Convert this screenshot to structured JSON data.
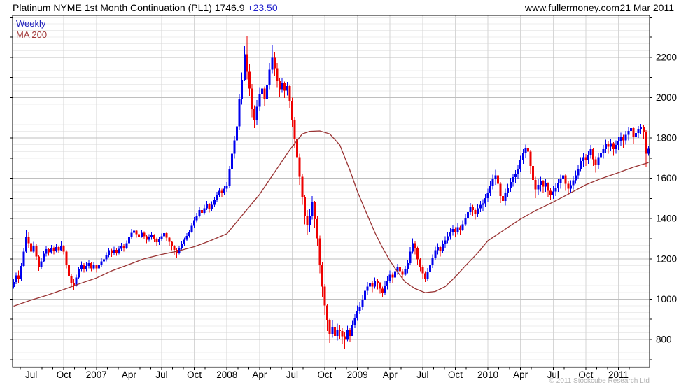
{
  "header": {
    "title": "Platinum NYME 1st Month Continuation (PL1)",
    "price": "1746.9",
    "change": "+23.50",
    "site": "www.fullermoney.com",
    "date": "21 Mar 2011"
  },
  "legend": {
    "timeframe": "Weekly",
    "ma": "MA 200"
  },
  "footer": {
    "copyright": "© 2011 Stockcube Research Ltd"
  },
  "colors": {
    "up": "#0000ee",
    "down": "#ee0000",
    "ma": "#993333",
    "change_text": "#2020cc",
    "legend_weekly": "#2020bb",
    "legend_ma": "#a03535",
    "grid_major": "#bfbfbf",
    "grid_minor": "#ececec",
    "grid_vertical": "#d6d6d6",
    "axis": "#000000",
    "copyright": "#b2b2b2"
  },
  "chart_data": {
    "type": "candlestick",
    "title": "Platinum NYME 1st Month Continuation (PL1)",
    "timeframe": "weekly",
    "period_start": "May 2006",
    "period_end": "21 Mar 2011",
    "last_price": 1746.9,
    "last_change": 23.5,
    "ylim": [
      661,
      2408
    ],
    "y_labels": [
      800,
      1000,
      1200,
      1400,
      1600,
      1800,
      2000,
      2200
    ],
    "y_minor_step": 33.333,
    "y_tick_step": 100,
    "x_ticks": [
      [
        7,
        "Jul"
      ],
      [
        20,
        "Oct"
      ],
      [
        33,
        "2007"
      ],
      [
        46,
        "Apr"
      ],
      [
        59,
        "Jul"
      ],
      [
        72,
        "Oct"
      ],
      [
        85,
        "2008"
      ],
      [
        98,
        "Apr"
      ],
      [
        111,
        "Jul"
      ],
      [
        124,
        "Oct"
      ],
      [
        137,
        "2009"
      ],
      [
        150,
        "Apr"
      ],
      [
        163,
        "Jul"
      ],
      [
        176,
        "Oct"
      ],
      [
        189,
        "2010"
      ],
      [
        202,
        "Apr"
      ],
      [
        215,
        "Jul"
      ],
      [
        228,
        "Oct"
      ],
      [
        241,
        "2011"
      ]
    ],
    "first_open": 1060,
    "candles": [
      [
        1085,
        1098,
        1052
      ],
      [
        1118,
        1132,
        1075
      ],
      [
        1098,
        1142,
        1080
      ],
      [
        1165,
        1178,
        1092
      ],
      [
        1235,
        1252,
        1158
      ],
      [
        1310,
        1345,
        1228
      ],
      [
        1278,
        1332,
        1252
      ],
      [
        1235,
        1292,
        1215
      ],
      [
        1265,
        1285,
        1228
      ],
      [
        1212,
        1272,
        1195
      ],
      [
        1158,
        1218,
        1140
      ],
      [
        1188,
        1205,
        1148
      ],
      [
        1225,
        1240,
        1182
      ],
      [
        1248,
        1265,
        1212
      ],
      [
        1232,
        1255,
        1215
      ],
      [
        1252,
        1268,
        1225
      ],
      [
        1238,
        1260,
        1222
      ],
      [
        1258,
        1275,
        1232
      ],
      [
        1242,
        1265,
        1228
      ],
      [
        1262,
        1288,
        1238
      ],
      [
        1235,
        1268,
        1222
      ],
      [
        1168,
        1242,
        1152
      ],
      [
        1115,
        1172,
        1092
      ],
      [
        1082,
        1125,
        1058
      ],
      [
        1068,
        1098,
        1045
      ],
      [
        1108,
        1122,
        1062
      ],
      [
        1148,
        1162,
        1102
      ],
      [
        1172,
        1188,
        1138
      ],
      [
        1148,
        1178,
        1132
      ],
      [
        1165,
        1182,
        1138
      ],
      [
        1178,
        1195,
        1152
      ],
      [
        1152,
        1182,
        1138
      ],
      [
        1168,
        1185,
        1145
      ],
      [
        1152,
        1172,
        1132
      ],
      [
        1172,
        1188,
        1142
      ],
      [
        1188,
        1202,
        1158
      ],
      [
        1198,
        1212,
        1172
      ],
      [
        1218,
        1232,
        1188
      ],
      [
        1242,
        1255,
        1208
      ],
      [
        1228,
        1250,
        1210
      ],
      [
        1245,
        1260,
        1220
      ],
      [
        1230,
        1252,
        1215
      ],
      [
        1250,
        1265,
        1222
      ],
      [
        1265,
        1280,
        1238
      ],
      [
        1252,
        1272,
        1236
      ],
      [
        1278,
        1292,
        1248
      ],
      [
        1308,
        1322,
        1270
      ],
      [
        1330,
        1348,
        1298
      ],
      [
        1340,
        1356,
        1316
      ],
      [
        1322,
        1346,
        1305
      ],
      [
        1310,
        1335,
        1294
      ],
      [
        1330,
        1345,
        1305
      ],
      [
        1312,
        1336,
        1296
      ],
      [
        1294,
        1320,
        1278
      ],
      [
        1308,
        1322,
        1284
      ],
      [
        1318,
        1332,
        1294
      ],
      [
        1298,
        1322,
        1282
      ],
      [
        1282,
        1305,
        1264
      ],
      [
        1296,
        1310,
        1268
      ],
      [
        1312,
        1326,
        1288
      ],
      [
        1328,
        1342,
        1302
      ],
      [
        1306,
        1332,
        1290
      ],
      [
        1284,
        1310,
        1262
      ],
      [
        1262,
        1290,
        1242
      ],
      [
        1244,
        1268,
        1220
      ],
      [
        1230,
        1252,
        1205
      ],
      [
        1254,
        1266,
        1222
      ],
      [
        1274,
        1288,
        1246
      ],
      [
        1294,
        1306,
        1262
      ],
      [
        1314,
        1328,
        1286
      ],
      [
        1334,
        1346,
        1306
      ],
      [
        1364,
        1378,
        1330
      ],
      [
        1392,
        1408,
        1356
      ],
      [
        1412,
        1428,
        1382
      ],
      [
        1442,
        1458,
        1406
      ],
      [
        1428,
        1452,
        1408
      ],
      [
        1452,
        1468,
        1420
      ],
      [
        1472,
        1488,
        1442
      ],
      [
        1448,
        1478,
        1430
      ],
      [
        1468,
        1486,
        1438
      ],
      [
        1492,
        1508,
        1458
      ],
      [
        1518,
        1532,
        1485
      ],
      [
        1538,
        1552,
        1508
      ],
      [
        1526,
        1548,
        1505
      ],
      [
        1548,
        1564,
        1518
      ],
      [
        1562,
        1582,
        1532
      ],
      [
        1645,
        1662,
        1552
      ],
      [
        1722,
        1748,
        1628
      ],
      [
        1788,
        1810,
        1698
      ],
      [
        1858,
        1882,
        1765
      ],
      [
        1995,
        2018,
        1842
      ],
      [
        2088,
        2125,
        1965
      ],
      [
        2215,
        2256,
        2082
      ],
      [
        2128,
        2308,
        2090
      ],
      [
        2045,
        2165,
        2008
      ],
      [
        1945,
        2068,
        1902
      ],
      [
        1888,
        1962,
        1848
      ],
      [
        1955,
        1988,
        1862
      ],
      [
        2018,
        2048,
        1932
      ],
      [
        2045,
        2078,
        1985
      ],
      [
        1995,
        2055,
        1960
      ],
      [
        2065,
        2088,
        1978
      ],
      [
        2138,
        2172,
        2042
      ],
      [
        2198,
        2262,
        2118
      ],
      [
        2145,
        2228,
        2110
      ],
      [
        2082,
        2172,
        2048
      ],
      [
        2042,
        2098,
        2005
      ],
      [
        2075,
        2098,
        2025
      ],
      [
        2035,
        2080,
        1998
      ],
      [
        2058,
        2078,
        2010
      ],
      [
        1985,
        2062,
        1950
      ],
      [
        1890,
        2000,
        1852
      ],
      [
        1795,
        1905,
        1752
      ],
      [
        1705,
        1812,
        1672
      ],
      [
        1608,
        1722,
        1568
      ],
      [
        1505,
        1622,
        1468
      ],
      [
        1412,
        1518,
        1372
      ],
      [
        1368,
        1442,
        1318
      ],
      [
        1412,
        1448,
        1332
      ],
      [
        1482,
        1512,
        1395
      ],
      [
        1398,
        1488,
        1352
      ],
      [
        1302,
        1412,
        1265
      ],
      [
        1172,
        1315,
        1128
      ],
      [
        1062,
        1185,
        1012
      ],
      [
        968,
        1075,
        922
      ],
      [
        898,
        975,
        842
      ],
      [
        828,
        902,
        782
      ],
      [
        862,
        898,
        808
      ],
      [
        818,
        872,
        768
      ],
      [
        848,
        878,
        795
      ],
      [
        842,
        872,
        802
      ],
      [
        815,
        855,
        778
      ],
      [
        798,
        835,
        752
      ],
      [
        845,
        868,
        792
      ],
      [
        818,
        858,
        788
      ],
      [
        872,
        895,
        825
      ],
      [
        905,
        928,
        858
      ],
      [
        942,
        968,
        895
      ],
      [
        962,
        985,
        928
      ],
      [
        998,
        1018,
        945
      ],
      [
        1042,
        1062,
        985
      ],
      [
        1062,
        1085,
        1018
      ],
      [
        1078,
        1098,
        1042
      ],
      [
        1062,
        1088,
        1035
      ],
      [
        1092,
        1108,
        1052
      ],
      [
        1078,
        1098,
        1048
      ],
      [
        1052,
        1085,
        1028
      ],
      [
        1032,
        1062,
        1008
      ],
      [
        1068,
        1088,
        1022
      ],
      [
        1092,
        1112,
        1048
      ],
      [
        1122,
        1142,
        1078
      ],
      [
        1108,
        1132,
        1082
      ],
      [
        1138,
        1155,
        1098
      ],
      [
        1158,
        1175,
        1122
      ],
      [
        1138,
        1162,
        1112
      ],
      [
        1122,
        1148,
        1098
      ],
      [
        1148,
        1165,
        1112
      ],
      [
        1178,
        1195,
        1128
      ],
      [
        1235,
        1258,
        1168
      ],
      [
        1278,
        1302,
        1225
      ],
      [
        1252,
        1288,
        1222
      ],
      [
        1198,
        1260,
        1172
      ],
      [
        1162,
        1205,
        1138
      ],
      [
        1128,
        1168,
        1098
      ],
      [
        1102,
        1138,
        1085
      ],
      [
        1135,
        1155,
        1092
      ],
      [
        1168,
        1185,
        1125
      ],
      [
        1205,
        1222,
        1155
      ],
      [
        1242,
        1260,
        1192
      ],
      [
        1258,
        1278,
        1222
      ],
      [
        1238,
        1266,
        1212
      ],
      [
        1272,
        1292,
        1228
      ],
      [
        1292,
        1312,
        1255
      ],
      [
        1312,
        1332,
        1278
      ],
      [
        1332,
        1352,
        1295
      ],
      [
        1348,
        1368,
        1315
      ],
      [
        1332,
        1358,
        1308
      ],
      [
        1358,
        1376,
        1322
      ],
      [
        1342,
        1365,
        1318
      ],
      [
        1372,
        1392,
        1338
      ],
      [
        1402,
        1422,
        1362
      ],
      [
        1432,
        1452,
        1392
      ],
      [
        1458,
        1478,
        1418
      ],
      [
        1442,
        1468,
        1415
      ],
      [
        1422,
        1452,
        1395
      ],
      [
        1452,
        1472,
        1408
      ],
      [
        1468,
        1488,
        1432
      ],
      [
        1475,
        1496,
        1438
      ],
      [
        1502,
        1522,
        1458
      ],
      [
        1525,
        1548,
        1482
      ],
      [
        1562,
        1585,
        1512
      ],
      [
        1595,
        1618,
        1545
      ],
      [
        1615,
        1642,
        1568
      ],
      [
        1572,
        1628,
        1538
      ],
      [
        1512,
        1582,
        1478
      ],
      [
        1488,
        1528,
        1455
      ],
      [
        1528,
        1548,
        1465
      ],
      [
        1552,
        1572,
        1505
      ],
      [
        1582,
        1602,
        1532
      ],
      [
        1605,
        1622,
        1558
      ],
      [
        1622,
        1640,
        1578
      ],
      [
        1645,
        1665,
        1598
      ],
      [
        1692,
        1712,
        1632
      ],
      [
        1725,
        1745,
        1672
      ],
      [
        1748,
        1768,
        1702
      ],
      [
        1732,
        1760,
        1695
      ],
      [
        1662,
        1742,
        1622
      ],
      [
        1592,
        1672,
        1548
      ],
      [
        1545,
        1608,
        1502
      ],
      [
        1568,
        1595,
        1515
      ],
      [
        1585,
        1608,
        1535
      ],
      [
        1558,
        1592,
        1525
      ],
      [
        1575,
        1598,
        1532
      ],
      [
        1538,
        1580,
        1508
      ],
      [
        1518,
        1552,
        1492
      ],
      [
        1535,
        1560,
        1498
      ],
      [
        1552,
        1575,
        1512
      ],
      [
        1575,
        1598,
        1532
      ],
      [
        1595,
        1618,
        1548
      ],
      [
        1615,
        1635,
        1565
      ],
      [
        1572,
        1620,
        1538
      ],
      [
        1548,
        1586,
        1518
      ],
      [
        1565,
        1590,
        1525
      ],
      [
        1590,
        1610,
        1545
      ],
      [
        1615,
        1638,
        1572
      ],
      [
        1645,
        1665,
        1598
      ],
      [
        1685,
        1705,
        1635
      ],
      [
        1705,
        1725,
        1658
      ],
      [
        1692,
        1720,
        1662
      ],
      [
        1715,
        1735,
        1672
      ],
      [
        1745,
        1765,
        1698
      ],
      [
        1695,
        1750,
        1662
      ],
      [
        1665,
        1708,
        1628
      ],
      [
        1705,
        1725,
        1648
      ],
      [
        1725,
        1745,
        1682
      ],
      [
        1745,
        1765,
        1698
      ],
      [
        1772,
        1792,
        1728
      ],
      [
        1756,
        1784,
        1722
      ],
      [
        1775,
        1796,
        1735
      ],
      [
        1745,
        1780,
        1712
      ],
      [
        1765,
        1788,
        1722
      ],
      [
        1785,
        1806,
        1742
      ],
      [
        1805,
        1826,
        1762
      ],
      [
        1788,
        1816,
        1752
      ],
      [
        1815,
        1835,
        1768
      ],
      [
        1835,
        1855,
        1788
      ],
      [
        1848,
        1868,
        1806
      ],
      [
        1805,
        1852,
        1772
      ],
      [
        1825,
        1848,
        1782
      ],
      [
        1845,
        1860,
        1800
      ],
      [
        1856,
        1870,
        1818
      ],
      [
        1832,
        1862,
        1795
      ],
      [
        1722,
        1838,
        1658
      ],
      [
        1746.9,
        1762,
        1712
      ]
    ],
    "ma200": [
      [
        0,
        965
      ],
      [
        7,
        995
      ],
      [
        13,
        1018
      ],
      [
        20,
        1048
      ],
      [
        26,
        1075
      ],
      [
        33,
        1105
      ],
      [
        39,
        1140
      ],
      [
        46,
        1172
      ],
      [
        52,
        1200
      ],
      [
        59,
        1222
      ],
      [
        66,
        1240
      ],
      [
        72,
        1260
      ],
      [
        78,
        1288
      ],
      [
        85,
        1325
      ],
      [
        92,
        1430
      ],
      [
        98,
        1520
      ],
      [
        104,
        1630
      ],
      [
        110,
        1740
      ],
      [
        115,
        1820
      ],
      [
        118,
        1833
      ],
      [
        122,
        1835
      ],
      [
        126,
        1820
      ],
      [
        130,
        1765
      ],
      [
        134,
        1640
      ],
      [
        137,
        1535
      ],
      [
        140,
        1445
      ],
      [
        144,
        1330
      ],
      [
        147,
        1255
      ],
      [
        150,
        1190
      ],
      [
        153,
        1135
      ],
      [
        156,
        1085
      ],
      [
        160,
        1052
      ],
      [
        164,
        1032
      ],
      [
        168,
        1038
      ],
      [
        172,
        1062
      ],
      [
        176,
        1110
      ],
      [
        180,
        1165
      ],
      [
        185,
        1230
      ],
      [
        189,
        1290
      ],
      [
        195,
        1340
      ],
      [
        202,
        1398
      ],
      [
        208,
        1440
      ],
      [
        215,
        1482
      ],
      [
        222,
        1528
      ],
      [
        228,
        1568
      ],
      [
        234,
        1598
      ],
      [
        241,
        1628
      ],
      [
        247,
        1655
      ],
      [
        253,
        1678
      ]
    ]
  }
}
